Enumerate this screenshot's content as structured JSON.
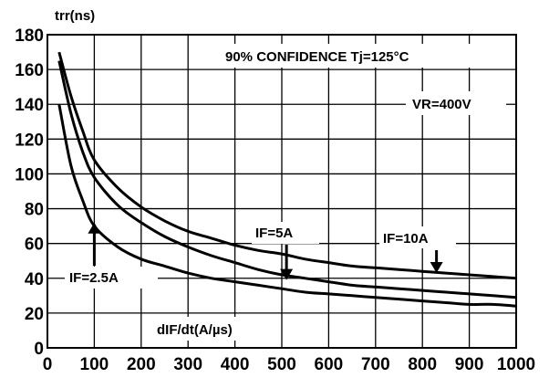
{
  "chart_data": {
    "type": "line",
    "ylabel": "trr(ns)",
    "xlabel": "dIF/dt(A/µs)",
    "xlim": [
      0,
      1000
    ],
    "ylim": [
      0,
      180
    ],
    "x_ticks": [
      0,
      100,
      200,
      300,
      400,
      500,
      600,
      700,
      800,
      900,
      1000
    ],
    "y_ticks": [
      0,
      20,
      40,
      60,
      80,
      100,
      120,
      140,
      160,
      180
    ],
    "grid": true,
    "annotations": {
      "confidence": "90% CONFIDENCE  Tj=125°C",
      "vr": "VR=400V"
    },
    "series": [
      {
        "name": "IF=10A",
        "x": [
          25,
          50,
          75,
          100,
          150,
          200,
          250,
          300,
          350,
          400,
          450,
          500,
          550,
          600,
          650,
          700,
          750,
          800,
          850,
          900,
          950,
          1000
        ],
        "y": [
          170,
          145,
          125,
          108,
          92,
          81,
          73,
          67,
          63,
          59,
          56,
          54,
          51,
          49,
          47,
          46,
          45,
          44,
          43,
          42,
          41,
          40
        ]
      },
      {
        "name": "IF=5A",
        "x": [
          25,
          50,
          75,
          100,
          150,
          200,
          250,
          300,
          350,
          400,
          450,
          500,
          550,
          600,
          650,
          700,
          750,
          800,
          850,
          900,
          950,
          1000
        ],
        "y": [
          165,
          135,
          113,
          98,
          82,
          72,
          64,
          58,
          53,
          49,
          45,
          42,
          40,
          38,
          36,
          35,
          34,
          33,
          32,
          31,
          30,
          29
        ]
      },
      {
        "name": "IF=2.5A",
        "x": [
          25,
          50,
          75,
          100,
          150,
          200,
          250,
          300,
          350,
          400,
          450,
          500,
          550,
          600,
          650,
          700,
          750,
          800,
          850,
          900,
          950,
          1000
        ],
        "y": [
          140,
          105,
          85,
          70,
          58,
          51,
          47,
          43,
          40,
          38,
          36,
          34,
          32,
          31,
          30,
          29,
          28,
          27,
          26,
          25,
          25,
          24
        ]
      }
    ],
    "labels": [
      {
        "text": "IF=10A",
        "series": 0,
        "x": 830,
        "y": 43
      },
      {
        "text": "IF=5A",
        "series": 1,
        "x": 510,
        "y": 39
      },
      {
        "text": "IF=2.5A",
        "series": 2,
        "x": 100,
        "y": 72
      }
    ]
  }
}
